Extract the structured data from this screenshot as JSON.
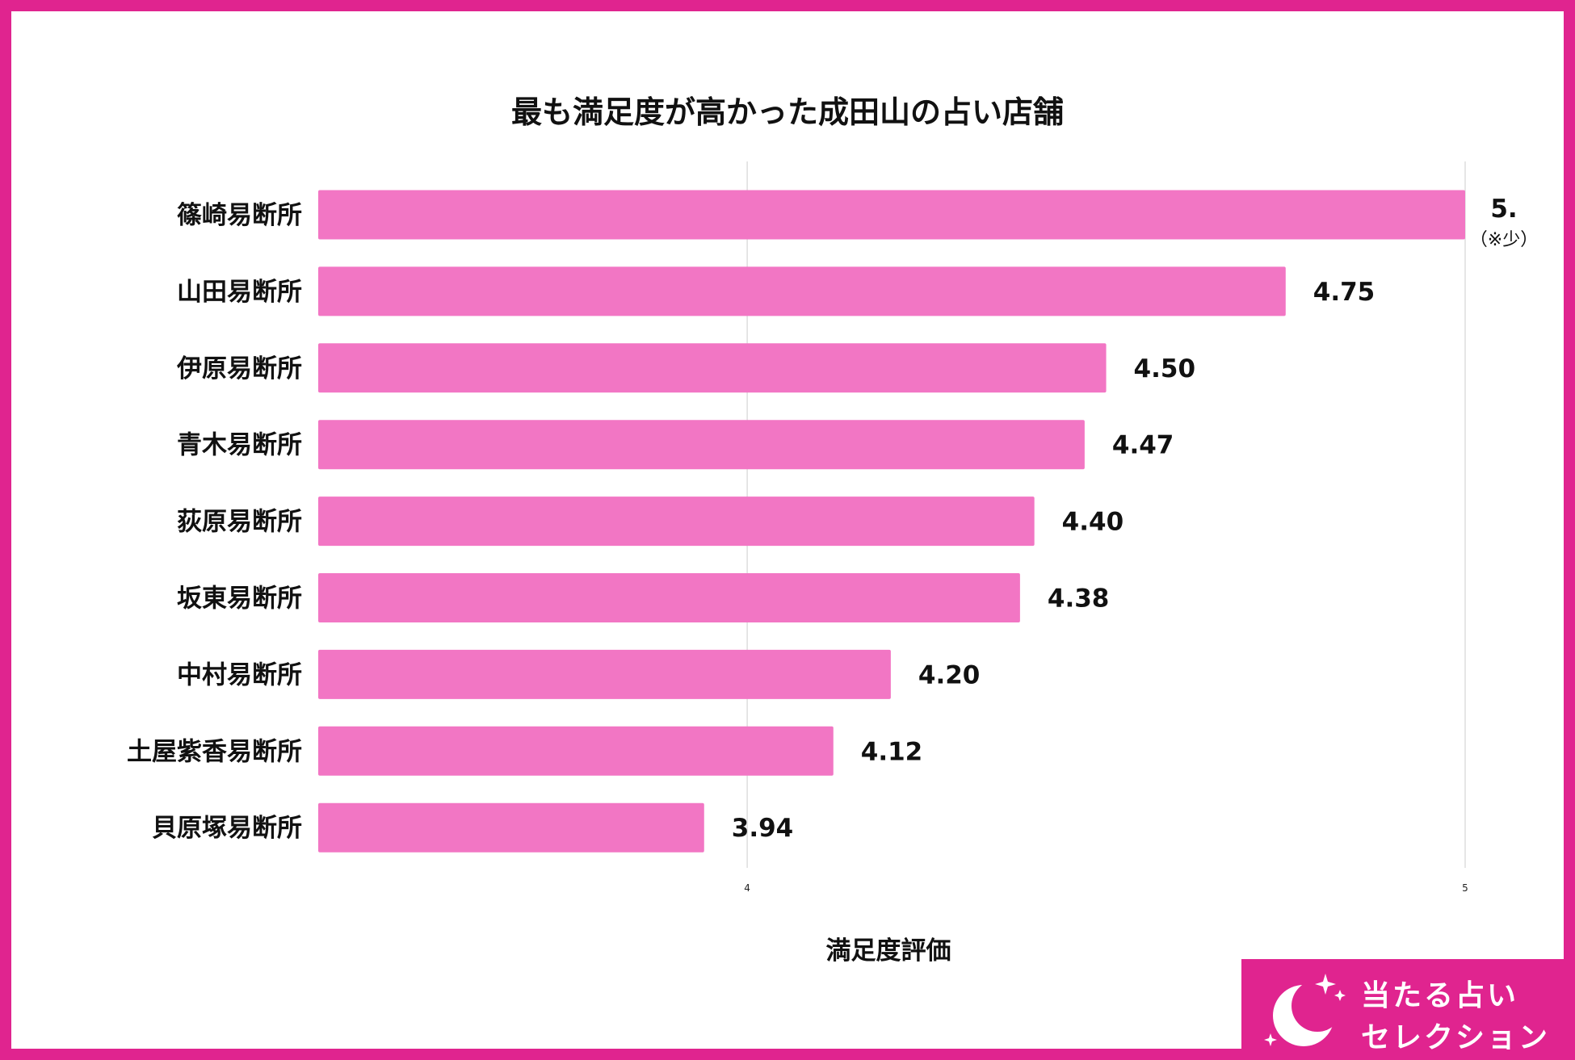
{
  "chart_data": {
    "type": "bar",
    "orientation": "horizontal",
    "title": "最も満足度が高かった成田山の占い店舗",
    "xlabel": "満足度評価",
    "ylabel": "",
    "categories": [
      "篠崎易断所",
      "山田易断所",
      "伊原易断所",
      "青木易断所",
      "荻原易断所",
      "坂東易断所",
      "中村易断所",
      "土屋紫香易断所",
      "貝原塚易断所"
    ],
    "values": [
      5.0,
      4.75,
      4.5,
      4.47,
      4.4,
      4.38,
      4.2,
      4.12,
      3.94
    ],
    "value_labels": [
      "5.",
      "4.75",
      "4.50",
      "4.47",
      "4.40",
      "4.38",
      "4.20",
      "4.12",
      "3.94"
    ],
    "annotations": [
      {
        "category": "篠崎易断所",
        "text": "（※少）"
      }
    ],
    "xticks": [
      "4",
      "5"
    ],
    "xlim": [
      3.4025,
      5.0
    ],
    "grid": true,
    "legend": "none",
    "bar_color": "#f276c4"
  },
  "colors": {
    "frame": "#e0248f",
    "bar": "#f276c4",
    "grid": "#dddddd"
  },
  "brand": {
    "line1": "当たる占い",
    "line2": "セレクション",
    "icon": "crescent-moon-stars-icon"
  }
}
